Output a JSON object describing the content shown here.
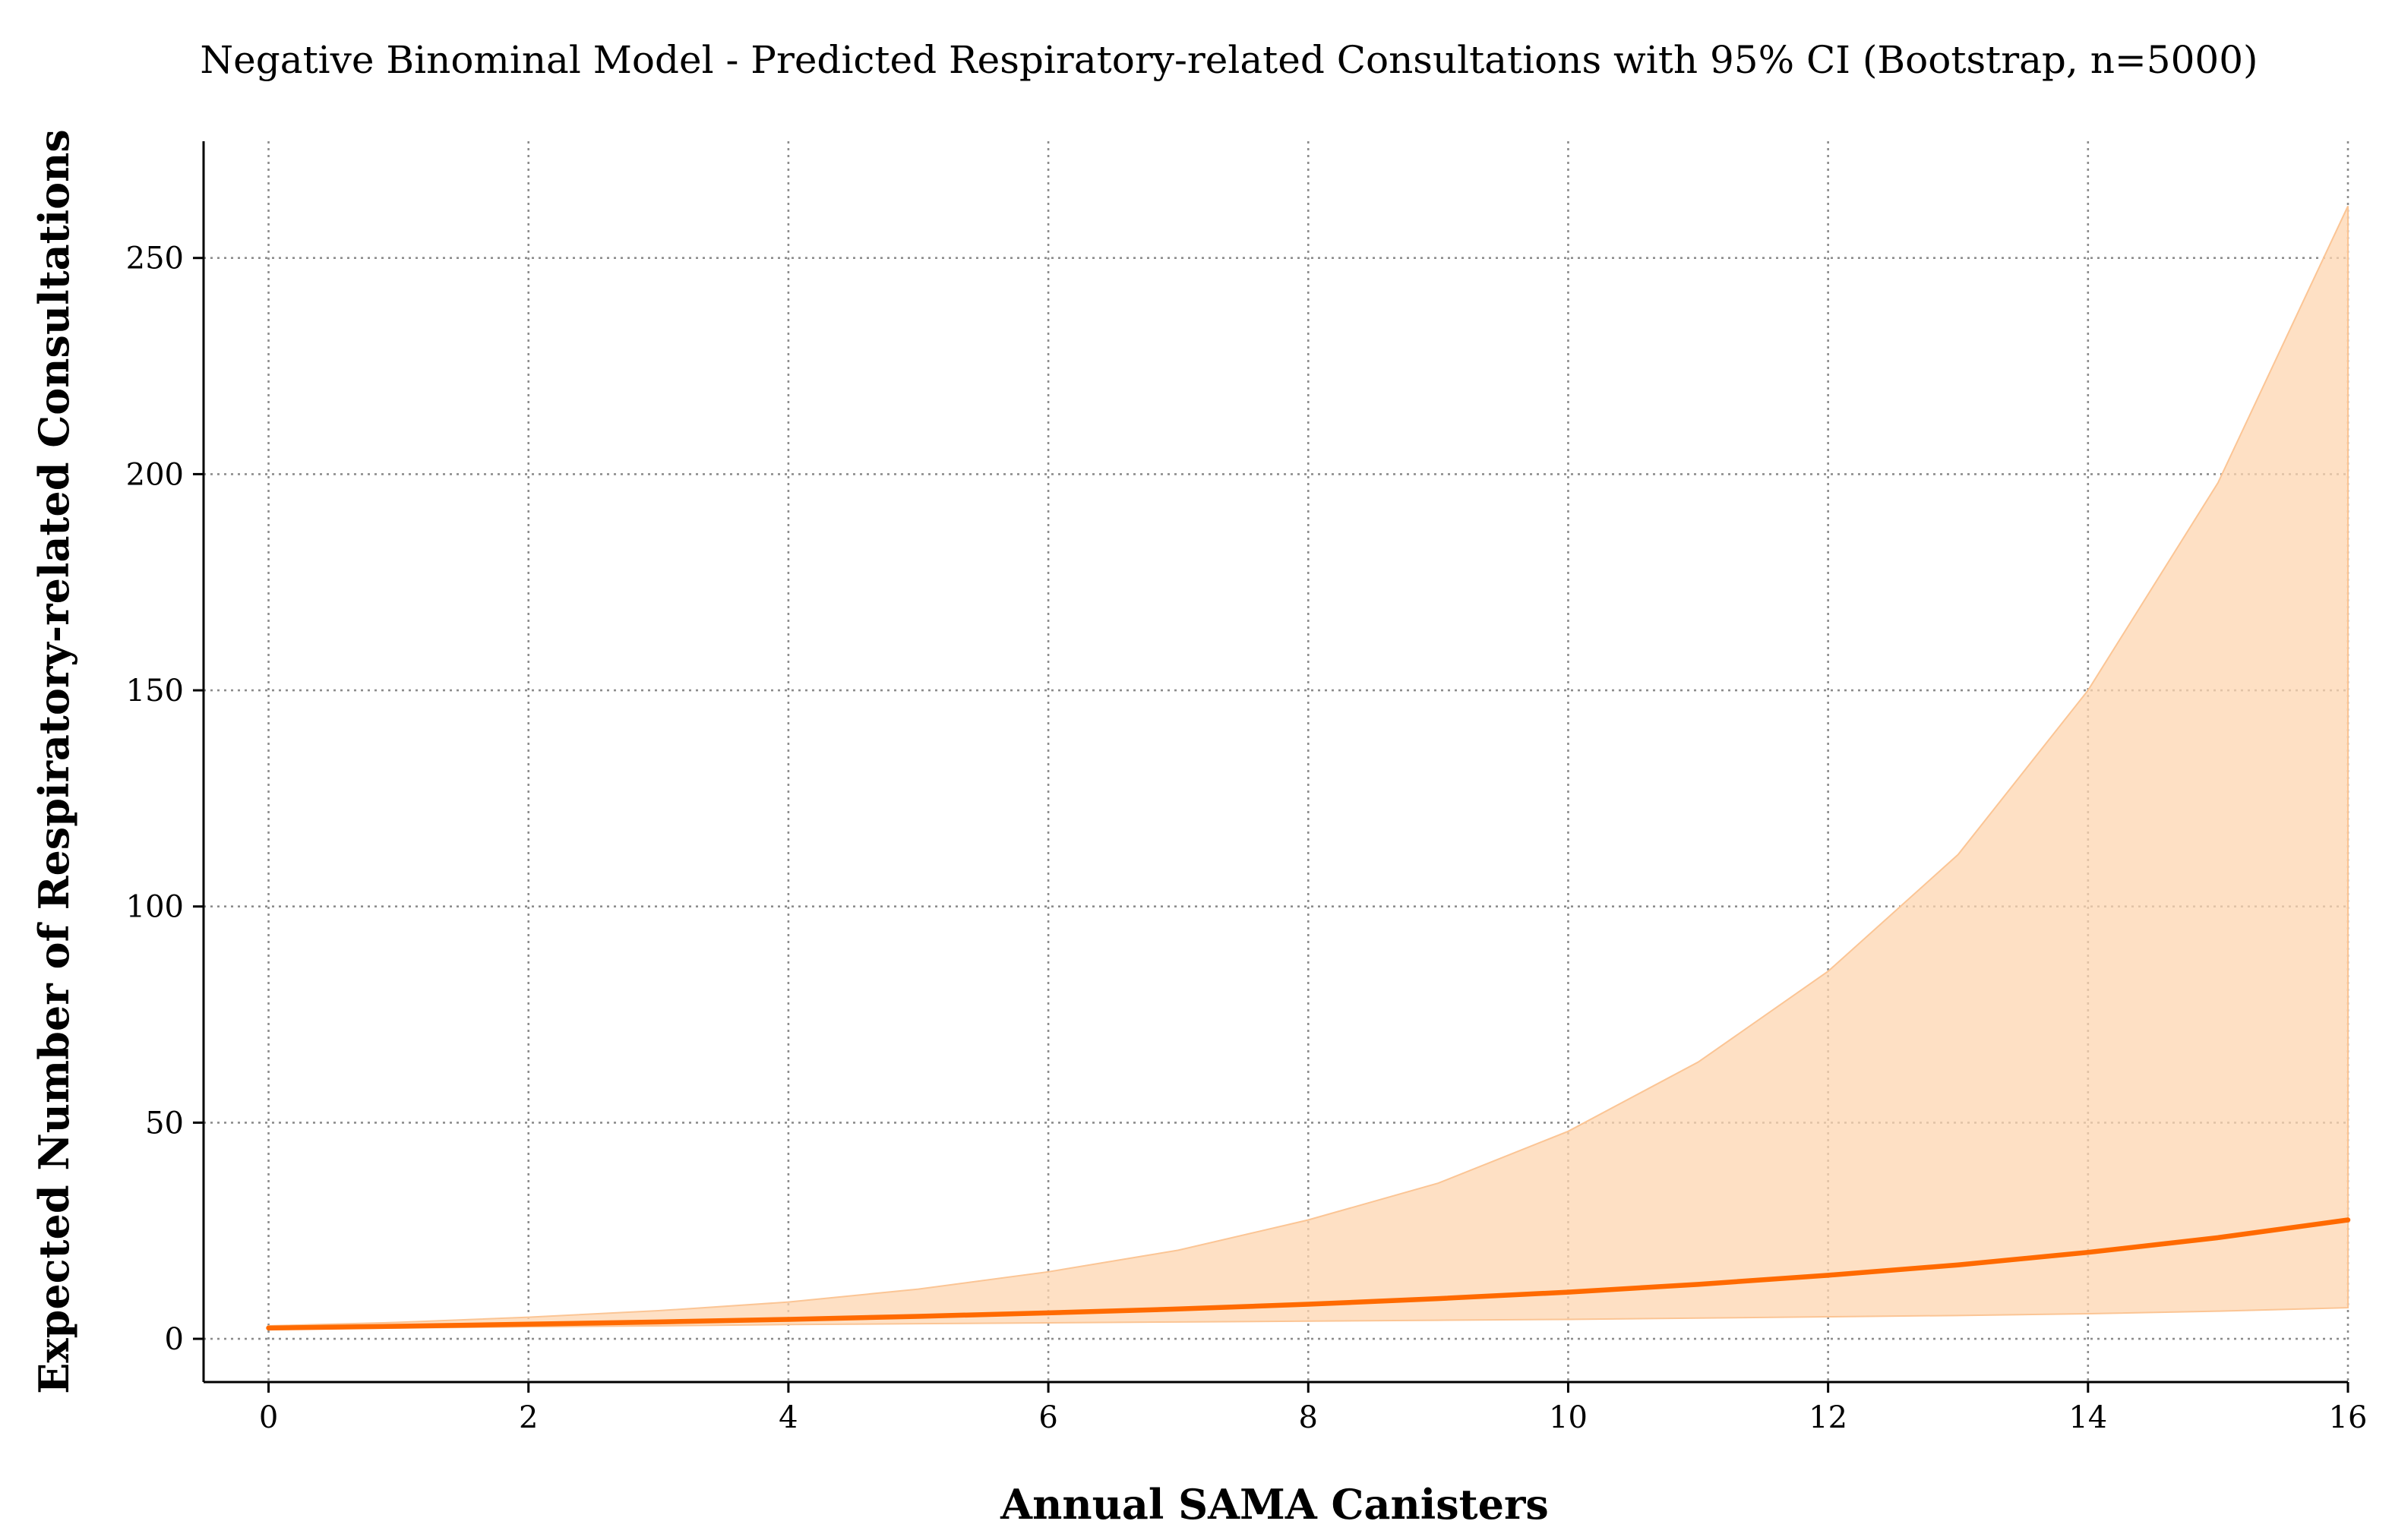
{
  "chart_data": {
    "type": "line",
    "title": "Negative Binominal Model - Predicted Respiratory-related Consultations with 95% CI (Bootstrap, n=5000)",
    "xlabel": "Annual SAMA Canisters",
    "ylabel": "Expected Number of Respiratory-related Consultations",
    "xlim": [
      -0.5,
      16
    ],
    "ylim": [
      -10,
      277
    ],
    "xticks": [
      0,
      2,
      4,
      6,
      8,
      10,
      12,
      14,
      16
    ],
    "yticks": [
      0,
      50,
      100,
      150,
      200,
      250
    ],
    "grid": true,
    "x": [
      0,
      1,
      2,
      3,
      4,
      5,
      6,
      7,
      8,
      9,
      10,
      11,
      12,
      13,
      14,
      15,
      16
    ],
    "series": [
      {
        "name": "Predicted",
        "color": "#ff6a00",
        "values": [
          2.5,
          2.9,
          3.4,
          3.9,
          4.5,
          5.2,
          6.0,
          6.9,
          8.0,
          9.3,
          10.8,
          12.6,
          14.7,
          17.1,
          20.0,
          23.4,
          27.5
        ]
      }
    ],
    "ci": {
      "name": "95% CI",
      "color": "#fdd5b0",
      "lower": [
        2.2,
        2.5,
        2.8,
        3.0,
        3.3,
        3.5,
        3.7,
        3.9,
        4.1,
        4.3,
        4.5,
        4.8,
        5.1,
        5.4,
        5.8,
        6.4,
        7.2
      ],
      "upper": [
        3.0,
        3.8,
        5.0,
        6.5,
        8.5,
        11.5,
        15.5,
        20.5,
        27.5,
        36.0,
        48.0,
        64.0,
        85.0,
        112.0,
        150.0,
        198.0,
        262.0
      ]
    }
  }
}
